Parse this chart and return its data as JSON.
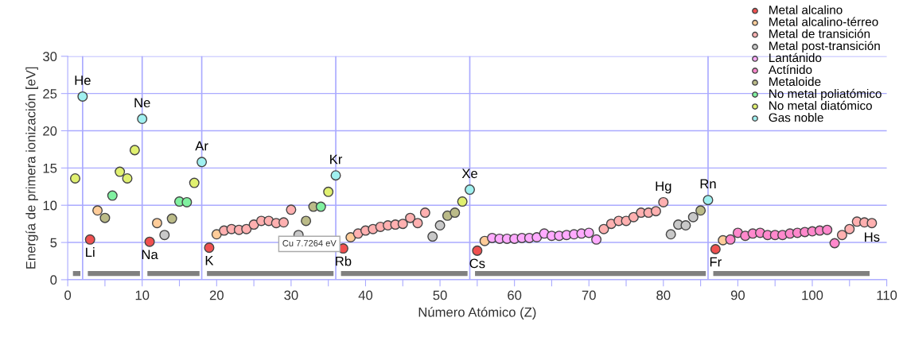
{
  "chart_data": {
    "type": "scatter",
    "xlabel": "Número Atómico (Z)",
    "ylabel": "Energía de primera ionización [eV]",
    "xlim": [
      0,
      110
    ],
    "ylim": [
      0,
      30
    ],
    "xticks": [
      0,
      {
        "value": 5,
        "label": null
      },
      10,
      {
        "value": 15,
        "label": null
      },
      20,
      {
        "value": 25,
        "label": null
      },
      30,
      {
        "value": 35,
        "label": null
      },
      40,
      {
        "value": 45,
        "label": null
      },
      50,
      {
        "value": 55,
        "label": null
      },
      60,
      {
        "value": 65,
        "label": null
      },
      70,
      {
        "value": 75,
        "label": null
      },
      80,
      {
        "value": 85,
        "label": null
      },
      90,
      {
        "value": 95,
        "label": null
      },
      100,
      {
        "value": 105,
        "label": null
      },
      110
    ],
    "yticks": [
      0,
      5,
      10,
      15,
      20,
      25,
      30
    ],
    "grid": "y",
    "legend": "top right",
    "marker": "circle",
    "series": [
      {
        "name": "Metal alcalino",
        "color": "#f05050",
        "x": [
          3,
          11,
          19,
          37,
          55,
          87
        ],
        "values": [
          5.4,
          5.1,
          4.3,
          4.2,
          3.9,
          4.1
        ]
      },
      {
        "name": "Metal alcalino-térreo",
        "color": "#ffcc99",
        "x": [
          4,
          12,
          20,
          38,
          56,
          88
        ],
        "values": [
          9.3,
          7.6,
          6.1,
          5.7,
          5.2,
          5.3
        ]
      },
      {
        "name": "Metal de transición",
        "color": "#ffb0b0",
        "x": [
          21,
          22,
          23,
          24,
          25,
          26,
          27,
          28,
          29,
          30,
          39,
          40,
          41,
          42,
          43,
          44,
          45,
          46,
          47,
          48,
          72,
          73,
          74,
          75,
          76,
          77,
          78,
          79,
          80,
          104,
          105,
          106,
          107,
          108
        ],
        "values": [
          6.6,
          6.8,
          6.7,
          6.8,
          7.4,
          7.9,
          7.9,
          7.6,
          7.7,
          9.4,
          6.2,
          6.6,
          6.8,
          7.1,
          7.3,
          7.4,
          7.5,
          8.3,
          7.6,
          9.0,
          6.8,
          7.5,
          7.9,
          7.9,
          8.4,
          9.0,
          9.0,
          9.2,
          10.4,
          6.0,
          6.8,
          7.8,
          7.7,
          7.6
        ]
      },
      {
        "name": "Metal post-transición",
        "color": "#c8c8c8",
        "x": [
          13,
          31,
          49,
          50,
          81,
          82,
          83,
          84
        ],
        "values": [
          6.0,
          6.0,
          5.8,
          7.3,
          6.1,
          7.4,
          7.3,
          8.4
        ]
      },
      {
        "name": "Lantánido",
        "color": "#ffaaff",
        "x": [
          57,
          58,
          59,
          60,
          61,
          62,
          63,
          64,
          65,
          66,
          67,
          68,
          69,
          70,
          71
        ],
        "values": [
          5.6,
          5.5,
          5.5,
          5.5,
          5.6,
          5.6,
          5.7,
          6.2,
          5.9,
          5.9,
          6.0,
          6.1,
          6.2,
          6.3,
          5.4
        ]
      },
      {
        "name": "Actínido",
        "color": "#ff88cc",
        "x": [
          89,
          90,
          91,
          92,
          93,
          94,
          95,
          96,
          97,
          98,
          99,
          100,
          101,
          102,
          103
        ],
        "values": [
          5.4,
          6.3,
          5.9,
          6.2,
          6.3,
          6.0,
          6.0,
          6.0,
          6.2,
          6.3,
          6.4,
          6.5,
          6.6,
          6.7,
          4.9
        ]
      },
      {
        "name": "Metaloide",
        "color": "#bbbb88",
        "x": [
          5,
          14,
          32,
          33,
          51,
          52,
          85
        ],
        "values": [
          8.3,
          8.2,
          7.9,
          9.8,
          8.6,
          9.0,
          9.3
        ]
      },
      {
        "name": "No metal poliatómico",
        "color": "#80f0a0",
        "x": [
          6,
          15,
          16,
          34
        ],
        "values": [
          11.3,
          10.5,
          10.4,
          9.8
        ]
      },
      {
        "name": "No metal diatómico",
        "color": "#e0f070",
        "x": [
          1,
          7,
          8,
          9,
          17,
          35,
          53
        ],
        "values": [
          13.6,
          14.5,
          13.6,
          17.4,
          13.0,
          11.8,
          10.5
        ]
      },
      {
        "name": "Gas noble",
        "color": "#a0f0f0",
        "x": [
          2,
          10,
          18,
          36,
          54,
          86
        ],
        "values": [
          24.6,
          21.6,
          15.8,
          14.0,
          12.1,
          10.7
        ]
      }
    ],
    "ref_lines": [
      {
        "axis": "x",
        "value": 2,
        "label": null,
        "color": "#aaaaff"
      },
      {
        "axis": "x",
        "value": 10,
        "label": null,
        "color": "#aaaaff"
      },
      {
        "axis": "x",
        "value": 18,
        "label": null,
        "color": "#aaaaff"
      },
      {
        "axis": "x",
        "value": 36,
        "label": null,
        "color": "#aaaaff"
      },
      {
        "axis": "x",
        "value": 54,
        "label": null,
        "color": "#aaaaff"
      },
      {
        "axis": "x",
        "value": 86,
        "label": null,
        "color": "#aaaaff"
      }
    ],
    "annotations": [
      {
        "text": "He",
        "x": 2,
        "y": 24.6
      },
      {
        "text": "Ne",
        "x": 10,
        "y": 21.6
      },
      {
        "text": "Ar",
        "x": 18,
        "y": 15.8
      },
      {
        "text": "Kr",
        "x": 36,
        "y": 14.0
      },
      {
        "text": "Xe",
        "x": 54,
        "y": 12.1
      },
      {
        "text": "Hg",
        "x": 80,
        "y": 10.4
      },
      {
        "text": "Rn",
        "x": 86,
        "y": 10.7
      },
      {
        "text": "Li",
        "x": 3,
        "y": 5.4
      },
      {
        "text": "Na",
        "x": 11,
        "y": 5.1
      },
      {
        "text": "K",
        "x": 19,
        "y": 4.3
      },
      {
        "text": "Rb",
        "x": 37,
        "y": 4.2
      },
      {
        "text": "Cs",
        "x": 55,
        "y": 3.9
      },
      {
        "text": "Fr",
        "x": 87,
        "y": 4.1
      },
      {
        "text": "Hs",
        "x": 108,
        "y": 7.6
      },
      "Cu 7.7264 eV"
    ]
  }
}
